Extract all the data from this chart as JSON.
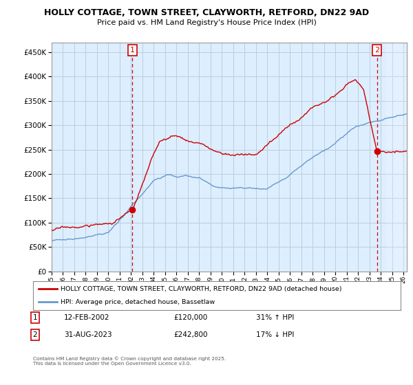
{
  "title": "HOLLY COTTAGE, TOWN STREET, CLAYWORTH, RETFORD, DN22 9AD",
  "subtitle": "Price paid vs. HM Land Registry's House Price Index (HPI)",
  "ylim": [
    0,
    470000
  ],
  "yticks": [
    0,
    50000,
    100000,
    150000,
    200000,
    250000,
    300000,
    350000,
    400000,
    450000
  ],
  "xlim_start": 1995.0,
  "xlim_end": 2026.3,
  "sale1_date": 2002.12,
  "sale1_price": 120000,
  "sale1_label": "1",
  "sale2_date": 2023.67,
  "sale2_price": 242800,
  "sale2_label": "2",
  "red_color": "#cc0000",
  "blue_color": "#6699cc",
  "vline_color": "#cc0000",
  "grid_color": "#bbccdd",
  "plot_bg_color": "#ddeeff",
  "hatch_start": 2024.5,
  "legend_red_label": "HOLLY COTTAGE, TOWN STREET, CLAYWORTH, RETFORD, DN22 9AD (detached house)",
  "legend_blue_label": "HPI: Average price, detached house, Bassetlaw",
  "annotation1_date": "12-FEB-2002",
  "annotation1_price": "£120,000",
  "annotation1_hpi": "31% ↑ HPI",
  "annotation2_date": "31-AUG-2023",
  "annotation2_price": "£242,800",
  "annotation2_hpi": "17% ↓ HPI",
  "footer": "Contains HM Land Registry data © Crown copyright and database right 2025.\nThis data is licensed under the Open Government Licence v3.0.",
  "background_color": "#ffffff"
}
